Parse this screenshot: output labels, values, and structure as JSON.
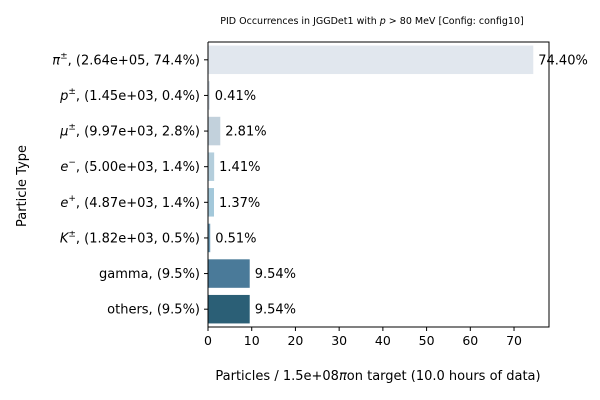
{
  "chart_data": {
    "type": "bar",
    "orientation": "horizontal",
    "title_parts": [
      "PID Occurrences in JGGDet1 with ",
      "p",
      " > 80 MeV [Config: config10]"
    ],
    "xlabel_parts": [
      "Particles / 1.5e+08",
      "π",
      "on target (10.0 hours of data)"
    ],
    "ylabel": "Particle Type",
    "xlim": [
      0,
      78
    ],
    "xticks": [
      0,
      10,
      20,
      30,
      40,
      50,
      60,
      70
    ],
    "categories": [
      {
        "sym": "π",
        "sup": "±",
        "rest": ", (2.64e+05, 74.4%)"
      },
      {
        "sym": "p",
        "sup": "±",
        "rest": ", (1.45e+03, 0.4%)"
      },
      {
        "sym": "μ",
        "sup": "±",
        "rest": ", (9.97e+03, 2.8%)"
      },
      {
        "sym": "e",
        "sup": "−",
        "rest": ", (5.00e+03, 1.4%)"
      },
      {
        "sym": "e",
        "sup": "+",
        "rest": ", (4.87e+03, 1.4%)"
      },
      {
        "sym": "K",
        "sup": "±",
        "rest": ", (1.82e+03, 0.5%)"
      },
      {
        "sym": "",
        "sup": "",
        "rest": "gamma, (9.5%)"
      },
      {
        "sym": "",
        "sup": "",
        "rest": "others, (9.5%)"
      }
    ],
    "values": [
      74.4,
      0.41,
      2.81,
      1.41,
      1.37,
      0.51,
      9.54,
      9.54
    ],
    "value_labels": [
      "74.40%",
      "0.41%",
      "2.81%",
      "1.41%",
      "1.37%",
      "0.51%",
      "9.54%",
      "9.54%"
    ],
    "colors": [
      "#e1e7ee",
      "#d3dde6",
      "#c2d1dc",
      "#b4cedc",
      "#a3c8da",
      "#6a98b3",
      "#4a7a99",
      "#2b5f76"
    ],
    "grid": false,
    "legend": "none"
  }
}
